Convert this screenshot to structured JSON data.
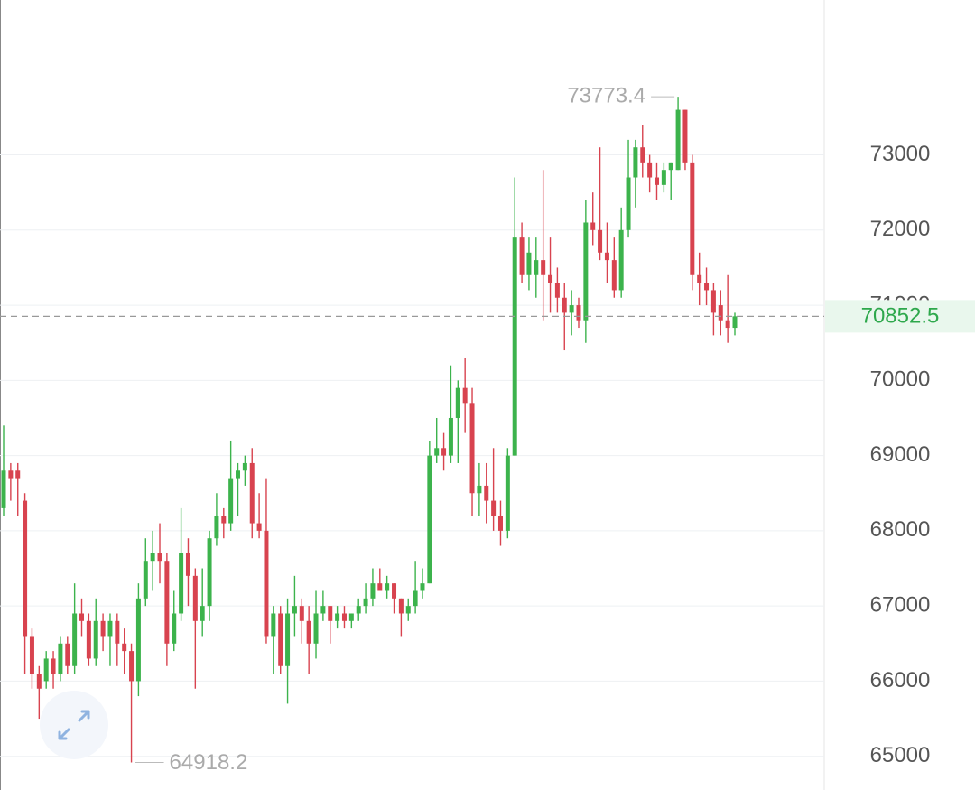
{
  "chart_data": {
    "type": "candlestick",
    "open": [
      68300,
      68800,
      68800,
      68400,
      66600,
      66100,
      66000,
      66300,
      66100,
      66500,
      66200,
      66900,
      66800,
      66300,
      66800,
      66600,
      66800,
      66500,
      66400,
      66000,
      67100,
      67600,
      67700,
      67600,
      66500,
      66900,
      67700,
      67400,
      66800,
      67000,
      67900,
      68200,
      68100,
      68700,
      68800,
      68900,
      68100,
      68000,
      66600,
      66900,
      66200,
      66900,
      67000,
      66800,
      66500,
      66900,
      67000,
      66800,
      66900,
      66800,
      66900,
      67000,
      67100,
      67300,
      67200,
      67300,
      67100,
      66900,
      67000,
      67200,
      67300,
      69000,
      69100,
      69000,
      69500,
      69900,
      69700,
      68500,
      68600,
      68400,
      68200,
      68000,
      69000,
      71900,
      71400,
      71400,
      71600,
      71400,
      71300,
      71100,
      70900,
      71000,
      70800,
      72100,
      72000,
      71700,
      71600,
      71200,
      72000,
      72700,
      73100,
      72900,
      72700,
      72600,
      72800,
      72800,
      73600,
      72900,
      71400,
      71300,
      71200,
      71000,
      70800,
      70700
    ],
    "high": [
      69400,
      68900,
      68900,
      68500,
      66700,
      66200,
      66400,
      66400,
      66600,
      66600,
      67300,
      67100,
      66900,
      67100,
      66900,
      66900,
      66900,
      66700,
      66500,
      67300,
      67900,
      68000,
      68100,
      67700,
      67200,
      68300,
      67900,
      67500,
      67500,
      68000,
      68500,
      68300,
      69200,
      68900,
      69000,
      69100,
      68500,
      68700,
      67000,
      67000,
      67100,
      67400,
      67100,
      67000,
      67200,
      67200,
      67000,
      67000,
      67000,
      66900,
      67100,
      67300,
      67500,
      67500,
      67400,
      67300,
      67100,
      67100,
      67600,
      67500,
      69200,
      69500,
      69300,
      70200,
      70000,
      70300,
      69900,
      68900,
      68900,
      69100,
      68400,
      69100,
      72700,
      72100,
      71900,
      71900,
      72800,
      71900,
      71500,
      71300,
      71200,
      71100,
      72400,
      72500,
      73100,
      72100,
      71900,
      72300,
      73200,
      73200,
      73400,
      73000,
      72900,
      72900,
      72900,
      73773.4,
      73600,
      73000,
      71700,
      71500,
      71300,
      71200,
      71400,
      70900
    ],
    "low": [
      68200,
      68400,
      68200,
      66100,
      65900,
      65500,
      65900,
      65900,
      66000,
      66100,
      66100,
      66600,
      66200,
      66200,
      66400,
      66200,
      66200,
      66100,
      64918.2,
      65800,
      67000,
      67200,
      67300,
      66200,
      66400,
      66800,
      67000,
      65900,
      66600,
      66800,
      67800,
      67900,
      68000,
      68200,
      68600,
      67900,
      67900,
      66500,
      66100,
      66100,
      65700,
      66600,
      66500,
      66100,
      66300,
      66800,
      66500,
      66700,
      66700,
      66700,
      66800,
      66900,
      67000,
      67200,
      67100,
      66900,
      66600,
      66800,
      66900,
      67100,
      67300,
      68900,
      68800,
      68900,
      68900,
      69300,
      68200,
      68200,
      68100,
      68000,
      67800,
      67900,
      69000,
      71300,
      71200,
      71100,
      70800,
      70900,
      70900,
      70400,
      70600,
      70700,
      70500,
      71800,
      71600,
      71300,
      71100,
      71100,
      71900,
      72300,
      72700,
      72500,
      72400,
      72500,
      72400,
      72800,
      72800,
      71200,
      71000,
      71000,
      70600,
      70600,
      70500,
      70600
    ],
    "close": [
      68800,
      68700,
      68700,
      66600,
      66100,
      65900,
      66300,
      66100,
      66500,
      66200,
      66900,
      66800,
      66300,
      66800,
      66600,
      66800,
      66500,
      66400,
      66000,
      67100,
      67600,
      67700,
      67600,
      66500,
      66900,
      67700,
      67400,
      66800,
      67000,
      67900,
      68200,
      68100,
      68700,
      68800,
      68900,
      68100,
      68000,
      66600,
      66900,
      66200,
      66900,
      67000,
      66800,
      66500,
      66900,
      67000,
      66800,
      66900,
      66800,
      66900,
      67000,
      67100,
      67300,
      67200,
      67300,
      67100,
      66900,
      67000,
      67200,
      67300,
      69000,
      69100,
      69000,
      69500,
      69900,
      69700,
      68500,
      68600,
      68400,
      68200,
      68000,
      69000,
      71900,
      71400,
      71700,
      71600,
      71400,
      71300,
      71100,
      70900,
      71000,
      70800,
      72100,
      72000,
      71700,
      71600,
      71200,
      72000,
      72700,
      73100,
      72900,
      72700,
      72600,
      72800,
      72900,
      73600,
      72900,
      71400,
      71300,
      71200,
      70900,
      70800,
      70700,
      70852.5
    ],
    "up_color": "#3cb34c",
    "down_color": "#d8434f",
    "ylim": [
      64600,
      75000
    ],
    "yticks": [
      65000,
      66000,
      67000,
      68000,
      69000,
      70000,
      71000,
      72000,
      73000
    ],
    "grid": true,
    "max": 73773.4,
    "min": 64918.2,
    "last_price": 70852.5
  }
}
